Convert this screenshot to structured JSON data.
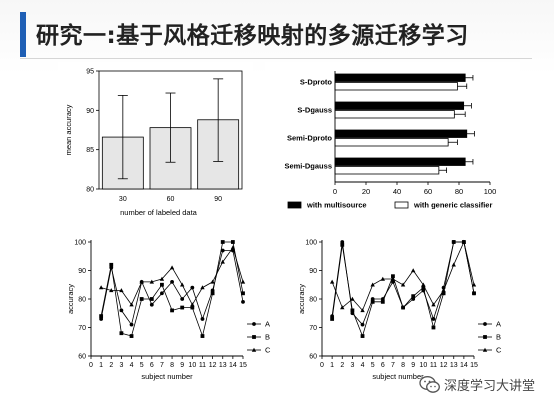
{
  "slide": {
    "title": "研究一:基于风格迁移映射的多源迁移学习",
    "accent_color": "#1f5fb5",
    "watermark": {
      "text": "深度学习大讲堂",
      "icon": "wechat-icon"
    }
  },
  "chart_data": [
    {
      "type": "bar",
      "categories": [
        "30",
        "60",
        "90"
      ],
      "values": [
        86.6,
        87.8,
        88.8
      ],
      "error_low": [
        81.3,
        83.4,
        83.5
      ],
      "error_high": [
        91.9,
        92.2,
        94.0
      ],
      "xlabel": "number of labeled data",
      "ylabel": "mean accuracy",
      "ylim": [
        80,
        95
      ],
      "yticks": [
        "80",
        "85",
        "90",
        "95"
      ],
      "color": "#e6e6e6"
    },
    {
      "type": "bar",
      "orientation": "horizontal",
      "categories": [
        "S-Dproto",
        "S-Dgauss",
        "Semi-Dproto",
        "Semi-Dgauss"
      ],
      "series": [
        {
          "name": "with multisource",
          "values": [
            84,
            83,
            85,
            84
          ],
          "errors": [
            5,
            5,
            5,
            5
          ],
          "color": "#000000"
        },
        {
          "name": "with generic classifier",
          "values": [
            79,
            77,
            73,
            67
          ],
          "errors": [
            6,
            7,
            6,
            5
          ],
          "color": "#ffffff"
        }
      ],
      "xlim": [
        0,
        100
      ],
      "xticks": [
        "0",
        "20",
        "40",
        "60",
        "80",
        "100"
      ],
      "legend": "bottom"
    },
    {
      "type": "line",
      "x": [
        1,
        2,
        3,
        4,
        5,
        6,
        7,
        8,
        9,
        10,
        11,
        12,
        13,
        14,
        15
      ],
      "series": [
        {
          "name": "A",
          "marker": "circle",
          "values": [
            73,
            91,
            76,
            71,
            86,
            78,
            82,
            86,
            80,
            84,
            73,
            83,
            97,
            97,
            79
          ]
        },
        {
          "name": "B",
          "marker": "square",
          "values": [
            74,
            92,
            68,
            67,
            80,
            80,
            85,
            76,
            77,
            77,
            67,
            82,
            100,
            100,
            82
          ]
        },
        {
          "name": "C",
          "marker": "triangle",
          "values": [
            84,
            83,
            83,
            78,
            86,
            86,
            87,
            91,
            85,
            78,
            84,
            86,
            93,
            98,
            86
          ]
        }
      ],
      "xlabel": "subject number",
      "ylabel": "accuracy",
      "xlim": [
        0,
        15
      ],
      "ylim": [
        60,
        100
      ],
      "xticks": [
        "0",
        "1",
        "2",
        "3",
        "4",
        "5",
        "6",
        "7",
        "8",
        "9",
        "10",
        "11",
        "12",
        "13",
        "14",
        "15"
      ],
      "yticks": [
        "60",
        "70",
        "80",
        "90",
        "100"
      ],
      "legend": "right"
    },
    {
      "type": "line",
      "x": [
        1,
        2,
        3,
        4,
        5,
        6,
        7,
        8,
        9,
        10,
        11,
        12,
        13,
        14,
        15
      ],
      "series": [
        {
          "name": "A",
          "marker": "circle",
          "values": [
            74,
            100,
            75,
            71,
            80,
            80,
            86,
            77,
            80,
            83,
            73,
            84,
            100,
            100,
            82
          ]
        },
        {
          "name": "B",
          "marker": "square",
          "values": [
            73,
            99,
            76,
            67,
            79,
            79,
            88,
            77,
            81,
            84,
            70,
            82,
            100,
            100,
            82
          ]
        },
        {
          "name": "C",
          "marker": "triangle",
          "values": [
            86,
            77,
            80,
            76,
            85,
            87,
            87,
            85,
            90,
            85,
            78,
            83,
            92,
            100,
            85
          ]
        }
      ],
      "xlabel": "subject number",
      "ylabel": "accuracy",
      "xlim": [
        0,
        15
      ],
      "ylim": [
        60,
        100
      ],
      "xticks": [
        "0",
        "1",
        "2",
        "3",
        "4",
        "5",
        "6",
        "7",
        "8",
        "9",
        "10",
        "11",
        "12",
        "13",
        "14",
        "15"
      ],
      "yticks": [
        "60",
        "70",
        "80",
        "90",
        "100"
      ],
      "legend": "right"
    }
  ]
}
